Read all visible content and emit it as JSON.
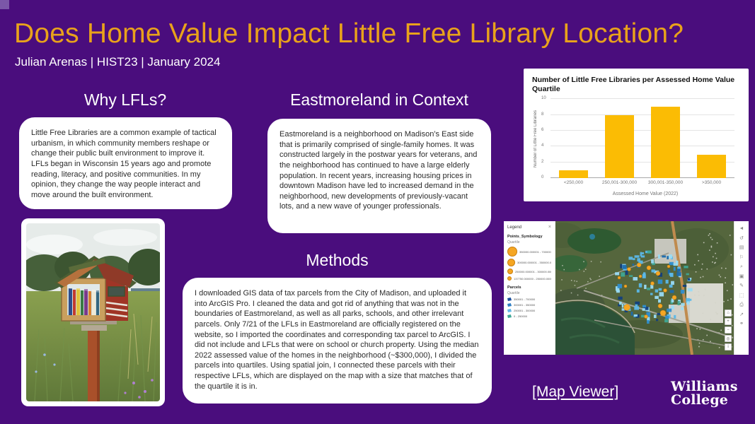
{
  "header": {
    "title": "Does Home Value Impact Little Free Library Location?",
    "subtitle": "Julian Arenas | HIST23 | January 2024"
  },
  "sections": {
    "why": {
      "heading": "Why LFLs?",
      "body": "Little Free Libraries are a common example of tactical urbanism, in which community members reshape or change their public built environment to improve it. LFLs began in Wisconsin 15 years ago and promote reading, literacy, and positive communities. In my opinion, they change the way people interact and move around the built environment."
    },
    "context": {
      "heading": "Eastmoreland in Context",
      "body": "Eastmoreland is a neighborhood on Madison’s East side that is primarily comprised of single-family homes. It was constructed largely in the postwar years for veterans, and the neighborhood has continued to have a large elderly population. In recent years, increasing housing prices in downtown Madison have led to increased demand in the neighborhood, new developments of previously-vacant lots, and a new wave of younger professionals."
    },
    "methods": {
      "heading": "Methods",
      "body": "I downloaded GIS data of tax parcels from the City of Madison, and uploaded it into ArcGIS Pro. I cleaned the data and got rid of anything that was not in the boundaries of Eastmoreland, as well as all parks, schools, and other irrelevant parcels. Only 7/21 of the LFLs in Eastmoreland are officially registered on the website, so I imported the coordinates and corresponding tax parcel to ArcGIS. I did not include and LFLs that were on school or church property. Using the median 2022 assessed value of the homes in the neighborhood (~$300,000), I divided the parcels into quartiles. Using spatial join, I connected these parcels with their respective LFLs, which are displayed on the map with a size that matches that of the quartile it is in."
    }
  },
  "chart_data": {
    "type": "bar",
    "title": "Number of Little Free Libraries per Assessed Home Value Quartile",
    "categories": [
      "<250,000",
      "250,001-300,000",
      "300,001-350,000",
      ">350,000"
    ],
    "values": [
      1,
      8,
      9,
      3
    ],
    "xlabel": "Assessed Home Value (2022)",
    "ylabel": "Number of Little Free Libraries",
    "ylim": [
      0,
      10
    ],
    "yticks": [
      10,
      8,
      6,
      4,
      2,
      0
    ],
    "bar_color": "#FBBC04",
    "grid": true,
    "legend_position": "none"
  },
  "map": {
    "legend": {
      "title": "Legend",
      "close_icon": "×",
      "sections": [
        {
          "name": "Points_Symbology",
          "sub": "Quartile",
          "type": "circle",
          "rows": [
            {
              "size": 12,
              "label": "350000.000001 - 700000.000000"
            },
            {
              "size": 9,
              "label": "300000.000001 - 350000.000000"
            },
            {
              "size": 6,
              "label": "250000.000001 - 300000.000000"
            },
            {
              "size": 4,
              "label": "137750.000000 - 250000.000000"
            }
          ]
        },
        {
          "name": "Parcels",
          "sub": "Quartile",
          "type": "poly",
          "rows": [
            {
              "color": "#1a4e9c",
              "label": "350001 - 700000"
            },
            {
              "color": "#2f7fc4",
              "label": "300001 - 350000"
            },
            {
              "color": "#62b8e8",
              "label": "250001 - 300000"
            },
            {
              "color": "#3fa795",
              "label": "0 - 250000"
            }
          ]
        }
      ]
    },
    "toolbar_icons": [
      "layers",
      "basemap",
      "legend",
      "bookmark",
      "measure",
      "select",
      "draw",
      "search",
      "print",
      "share",
      "link"
    ],
    "zoom_buttons": [
      "home",
      "plus",
      "minus",
      "locate",
      "info"
    ]
  },
  "footer": {
    "map_viewer_label": "[Map Viewer]",
    "logo_line1": "Williams",
    "logo_line2": "College"
  },
  "colors": {
    "background_purple": "#4A0D7D",
    "title_gold": "#E9A21B",
    "bar_gold": "#FBBC04",
    "point_orange": "#F5A623"
  }
}
